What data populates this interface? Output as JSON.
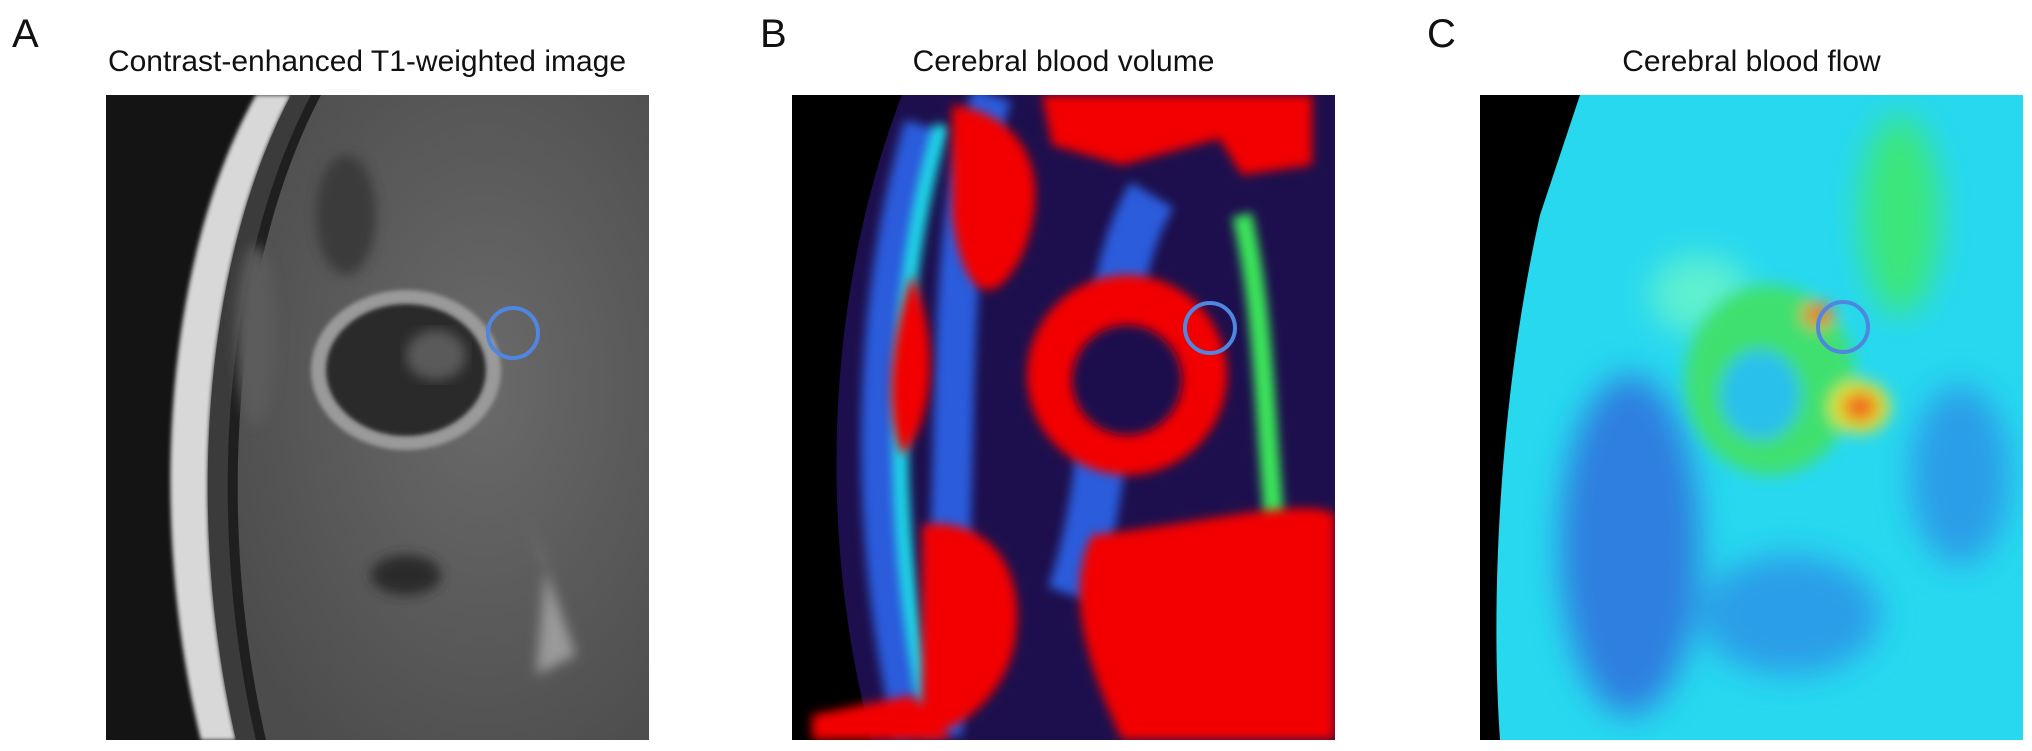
{
  "panels": [
    {
      "letter": "A",
      "title": "Contrast-enhanced T1-weighted image",
      "image": "MRI grayscale axial slice with ring-enhancing lesion"
    },
    {
      "letter": "B",
      "title": "Cerebral blood volume",
      "image": "rainbow perfusion map of CBV"
    },
    {
      "letter": "C",
      "title": "Cerebral blood flow",
      "image": "blue-green perfusion map of CBF"
    }
  ],
  "roi_marker": {
    "shape": "circle",
    "color": "#4f86e0"
  }
}
